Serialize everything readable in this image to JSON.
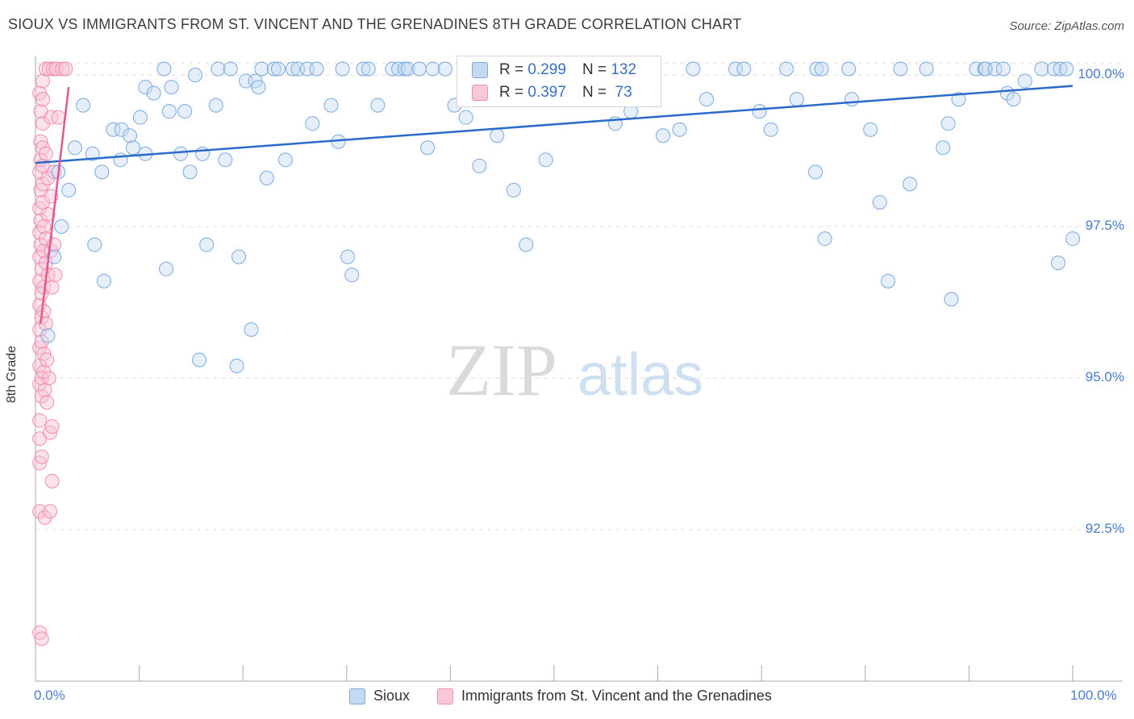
{
  "title": "SIOUX VS IMMIGRANTS FROM ST. VINCENT AND THE GRENADINES 8TH GRADE CORRELATION CHART",
  "source": "Source: ZipAtlas.com",
  "watermark": {
    "zip": "ZIP",
    "atlas": "atlas"
  },
  "colors": {
    "blue": "#7aaae0",
    "blue_line": "#2a6bc9",
    "pink": "#f28db0",
    "pink_line": "#e0588f",
    "grid": "#dddddd",
    "tick_text": "#4a7cc7"
  },
  "stats": [
    {
      "r_label": "R = ",
      "r_value": "0.299",
      "n_label": "N = ",
      "n_value": "132"
    },
    {
      "r_label": "R = ",
      "r_value": "0.397",
      "n_label": "N = ",
      "n_value": " 73"
    }
  ],
  "legend": [
    "Sioux",
    "Immigrants from St. Vincent and the Grenadines"
  ],
  "chart_data": {
    "type": "scatter",
    "title": "SIOUX VS IMMIGRANTS FROM ST. VINCENT AND THE GRENADINES 8TH GRADE CORRELATION CHART",
    "xlabel": "",
    "ylabel": "8th Grade",
    "xlim": [
      0,
      100
    ],
    "ylim": [
      90.0,
      100.2
    ],
    "x_tick_labels": [
      "0.0%",
      "100.0%"
    ],
    "y_ticks": [
      92.5,
      95.0,
      97.5,
      100.0
    ],
    "y_tick_labels": [
      "92.5%",
      "95.0%",
      "97.5%",
      "100.0%"
    ],
    "grid": true,
    "series": [
      {
        "name": "Sioux",
        "r": 0.299,
        "n": 132,
        "trend": {
          "x": [
            0,
            100
          ],
          "y": [
            98.55,
            99.82
          ]
        },
        "points": [
          [
            1.2,
            95.7
          ],
          [
            1.8,
            97.0
          ],
          [
            2.2,
            98.4
          ],
          [
            2.5,
            97.5
          ],
          [
            3.2,
            98.1
          ],
          [
            3.8,
            98.8
          ],
          [
            4.6,
            99.5
          ],
          [
            5.5,
            98.7
          ],
          [
            5.7,
            97.2
          ],
          [
            6.4,
            98.4
          ],
          [
            6.6,
            96.6
          ],
          [
            7.5,
            99.1
          ],
          [
            8.3,
            99.1
          ],
          [
            8.2,
            98.6
          ],
          [
            9.1,
            99.0
          ],
          [
            9.4,
            98.8
          ],
          [
            10.1,
            99.3
          ],
          [
            10.6,
            99.8
          ],
          [
            10.6,
            98.7
          ],
          [
            11.4,
            99.7
          ],
          [
            12.4,
            100.1
          ],
          [
            12.6,
            96.8
          ],
          [
            12.9,
            99.4
          ],
          [
            13.1,
            99.8
          ],
          [
            14.0,
            98.7
          ],
          [
            14.4,
            99.4
          ],
          [
            14.9,
            98.4
          ],
          [
            15.4,
            100.0
          ],
          [
            15.8,
            95.3
          ],
          [
            16.1,
            98.7
          ],
          [
            16.5,
            97.2
          ],
          [
            17.4,
            99.5
          ],
          [
            17.6,
            100.1
          ],
          [
            18.3,
            98.6
          ],
          [
            18.8,
            100.1
          ],
          [
            19.4,
            95.2
          ],
          [
            19.6,
            97.0
          ],
          [
            20.3,
            99.9
          ],
          [
            20.8,
            95.8
          ],
          [
            21.2,
            99.9
          ],
          [
            21.5,
            99.8
          ],
          [
            21.8,
            100.1
          ],
          [
            22.3,
            98.3
          ],
          [
            23.0,
            100.1
          ],
          [
            23.4,
            100.1
          ],
          [
            24.1,
            98.6
          ],
          [
            24.8,
            100.1
          ],
          [
            25.3,
            100.1
          ],
          [
            26.2,
            100.1
          ],
          [
            26.7,
            99.2
          ],
          [
            27.1,
            100.1
          ],
          [
            28.5,
            99.5
          ],
          [
            29.2,
            98.9
          ],
          [
            29.6,
            100.1
          ],
          [
            30.1,
            97.0
          ],
          [
            30.5,
            96.7
          ],
          [
            31.6,
            100.1
          ],
          [
            32.1,
            100.1
          ],
          [
            33.0,
            99.5
          ],
          [
            34.4,
            100.1
          ],
          [
            35.0,
            100.1
          ],
          [
            35.6,
            100.1
          ],
          [
            35.9,
            100.1
          ],
          [
            37.0,
            100.1
          ],
          [
            37.8,
            98.8
          ],
          [
            38.3,
            100.1
          ],
          [
            39.5,
            100.1
          ],
          [
            40.4,
            99.5
          ],
          [
            41.5,
            99.3
          ],
          [
            42.0,
            100.1
          ],
          [
            42.8,
            98.5
          ],
          [
            44.0,
            100.1
          ],
          [
            44.5,
            99.0
          ],
          [
            46.1,
            98.1
          ],
          [
            47.3,
            97.2
          ],
          [
            48.0,
            100.1
          ],
          [
            49.2,
            98.6
          ],
          [
            51.3,
            100.1
          ],
          [
            53.1,
            100.1
          ],
          [
            55.3,
            100.1
          ],
          [
            55.9,
            99.2
          ],
          [
            57.4,
            99.4
          ],
          [
            58.9,
            100.1
          ],
          [
            60.5,
            99.0
          ],
          [
            62.1,
            99.1
          ],
          [
            63.4,
            100.1
          ],
          [
            64.7,
            99.6
          ],
          [
            67.5,
            100.1
          ],
          [
            68.3,
            100.1
          ],
          [
            69.8,
            99.4
          ],
          [
            70.9,
            99.1
          ],
          [
            72.4,
            100.1
          ],
          [
            73.4,
            99.6
          ],
          [
            75.2,
            98.4
          ],
          [
            75.3,
            100.1
          ],
          [
            75.8,
            100.1
          ],
          [
            76.1,
            97.3
          ],
          [
            78.4,
            100.1
          ],
          [
            78.7,
            99.6
          ],
          [
            80.5,
            99.1
          ],
          [
            81.4,
            97.9
          ],
          [
            82.2,
            96.6
          ],
          [
            83.4,
            100.1
          ],
          [
            84.3,
            98.2
          ],
          [
            85.9,
            100.1
          ],
          [
            87.5,
            98.8
          ],
          [
            88.0,
            99.2
          ],
          [
            88.3,
            96.3
          ],
          [
            89.0,
            99.6
          ],
          [
            90.7,
            100.1
          ],
          [
            91.5,
            100.1
          ],
          [
            91.6,
            100.1
          ],
          [
            92.5,
            100.1
          ],
          [
            93.3,
            100.1
          ],
          [
            93.7,
            99.7
          ],
          [
            94.3,
            99.6
          ],
          [
            95.4,
            99.9
          ],
          [
            97.0,
            100.1
          ],
          [
            98.2,
            100.1
          ],
          [
            98.8,
            100.1
          ],
          [
            98.6,
            96.9
          ],
          [
            99.4,
            100.1
          ],
          [
            100.0,
            97.3
          ]
        ]
      },
      {
        "name": "Immigrants from St. Vincent and the Grenadines",
        "r": 0.397,
        "n": 73,
        "trend": {
          "x": [
            0.5,
            3.2
          ],
          "y": [
            95.9,
            99.8
          ]
        },
        "points": [
          [
            0.4,
            99.7
          ],
          [
            0.4,
            98.4
          ],
          [
            0.4,
            97.8
          ],
          [
            0.4,
            97.4
          ],
          [
            0.4,
            97.0
          ],
          [
            0.4,
            96.6
          ],
          [
            0.4,
            96.2
          ],
          [
            0.4,
            95.8
          ],
          [
            0.4,
            95.5
          ],
          [
            0.4,
            95.2
          ],
          [
            0.4,
            94.9
          ],
          [
            0.4,
            94.3
          ],
          [
            0.4,
            94.0
          ],
          [
            0.4,
            93.6
          ],
          [
            0.4,
            92.8
          ],
          [
            0.4,
            90.8
          ],
          [
            0.5,
            99.4
          ],
          [
            0.5,
            98.9
          ],
          [
            0.5,
            98.6
          ],
          [
            0.5,
            98.1
          ],
          [
            0.5,
            97.6
          ],
          [
            0.5,
            97.2
          ],
          [
            0.6,
            96.8
          ],
          [
            0.6,
            96.4
          ],
          [
            0.6,
            96.0
          ],
          [
            0.6,
            95.6
          ],
          [
            0.6,
            95.0
          ],
          [
            0.6,
            94.7
          ],
          [
            0.6,
            93.7
          ],
          [
            0.6,
            90.7
          ],
          [
            0.7,
            99.9
          ],
          [
            0.7,
            99.6
          ],
          [
            0.7,
            99.2
          ],
          [
            0.7,
            98.8
          ],
          [
            0.7,
            98.5
          ],
          [
            0.7,
            98.2
          ],
          [
            0.7,
            97.9
          ],
          [
            0.8,
            97.5
          ],
          [
            0.8,
            97.1
          ],
          [
            0.8,
            96.5
          ],
          [
            0.8,
            96.1
          ],
          [
            0.8,
            95.4
          ],
          [
            0.8,
            95.1
          ],
          [
            0.9,
            94.8
          ],
          [
            0.9,
            92.7
          ],
          [
            1.0,
            100.1
          ],
          [
            1.0,
            98.7
          ],
          [
            1.0,
            97.3
          ],
          [
            1.0,
            96.9
          ],
          [
            1.0,
            95.9
          ],
          [
            1.1,
            95.3
          ],
          [
            1.1,
            94.6
          ],
          [
            1.2,
            98.3
          ],
          [
            1.2,
            97.7
          ],
          [
            1.2,
            96.7
          ],
          [
            1.3,
            100.1
          ],
          [
            1.3,
            95.0
          ],
          [
            1.4,
            94.1
          ],
          [
            1.4,
            92.8
          ],
          [
            1.5,
            99.3
          ],
          [
            1.5,
            98.0
          ],
          [
            1.5,
            97.1
          ],
          [
            1.6,
            96.5
          ],
          [
            1.6,
            94.2
          ],
          [
            1.6,
            93.3
          ],
          [
            1.7,
            100.1
          ],
          [
            1.8,
            98.4
          ],
          [
            1.8,
            97.2
          ],
          [
            1.9,
            96.7
          ],
          [
            2.0,
            100.1
          ],
          [
            2.2,
            99.3
          ],
          [
            2.6,
            100.1
          ],
          [
            2.9,
            100.1
          ]
        ]
      }
    ]
  }
}
